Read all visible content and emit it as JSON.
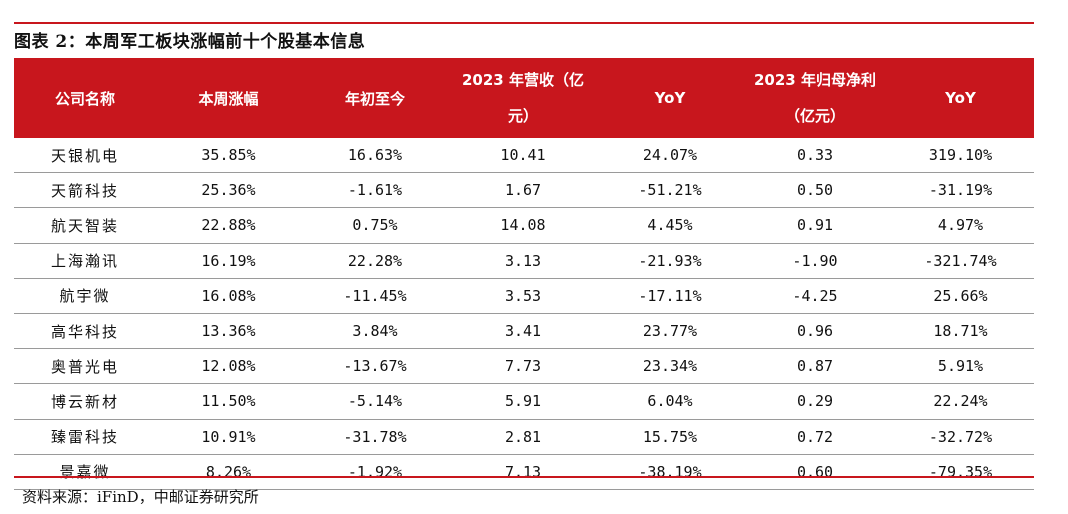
{
  "title": "图表 2：本周军工板块涨幅前十个股基本信息",
  "headers": {
    "company": "公司名称",
    "weekly_change": "本周涨幅",
    "ytd": "年初至今",
    "revenue_line1": "2023 年营收（亿",
    "revenue_line2": "元）",
    "revenue_yoy": "YoY",
    "profit_line1": "2023 年归母净利",
    "profit_line2": "（亿元）",
    "profit_yoy": "YoY"
  },
  "rows": [
    {
      "name": "天银机电",
      "weekly": "35.85%",
      "ytd": "16.63%",
      "revenue": "10.41",
      "revenue_yoy": "24.07%",
      "profit": "0.33",
      "profit_yoy": "319.10%"
    },
    {
      "name": "天箭科技",
      "weekly": "25.36%",
      "ytd": "-1.61%",
      "revenue": "1.67",
      "revenue_yoy": "-51.21%",
      "profit": "0.50",
      "profit_yoy": "-31.19%"
    },
    {
      "name": "航天智装",
      "weekly": "22.88%",
      "ytd": "0.75%",
      "revenue": "14.08",
      "revenue_yoy": "4.45%",
      "profit": "0.91",
      "profit_yoy": "4.97%"
    },
    {
      "name": "上海瀚讯",
      "weekly": "16.19%",
      "ytd": "22.28%",
      "revenue": "3.13",
      "revenue_yoy": "-21.93%",
      "profit": "-1.90",
      "profit_yoy": "-321.74%"
    },
    {
      "name": "航宇微",
      "weekly": "16.08%",
      "ytd": "-11.45%",
      "revenue": "3.53",
      "revenue_yoy": "-17.11%",
      "profit": "-4.25",
      "profit_yoy": "25.66%"
    },
    {
      "name": "高华科技",
      "weekly": "13.36%",
      "ytd": "3.84%",
      "revenue": "3.41",
      "revenue_yoy": "23.77%",
      "profit": "0.96",
      "profit_yoy": "18.71%"
    },
    {
      "name": "奥普光电",
      "weekly": "12.08%",
      "ytd": "-13.67%",
      "revenue": "7.73",
      "revenue_yoy": "23.34%",
      "profit": "0.87",
      "profit_yoy": "5.91%"
    },
    {
      "name": "博云新材",
      "weekly": "11.50%",
      "ytd": "-5.14%",
      "revenue": "5.91",
      "revenue_yoy": "6.04%",
      "profit": "0.29",
      "profit_yoy": "22.24%"
    },
    {
      "name": "臻雷科技",
      "weekly": "10.91%",
      "ytd": "-31.78%",
      "revenue": "2.81",
      "revenue_yoy": "15.75%",
      "profit": "0.72",
      "profit_yoy": "-32.72%"
    },
    {
      "name": "景嘉微",
      "weekly": "8.26%",
      "ytd": "-1.92%",
      "revenue": "7.13",
      "revenue_yoy": "-38.19%",
      "profit": "0.60",
      "profit_yoy": "-79.35%"
    }
  ],
  "source": "资料来源：iFinD，中邮证券研究所",
  "colors": {
    "header_bg": "#c8161d",
    "rule": "#c8161d",
    "row_border": "#9a9a9a"
  }
}
